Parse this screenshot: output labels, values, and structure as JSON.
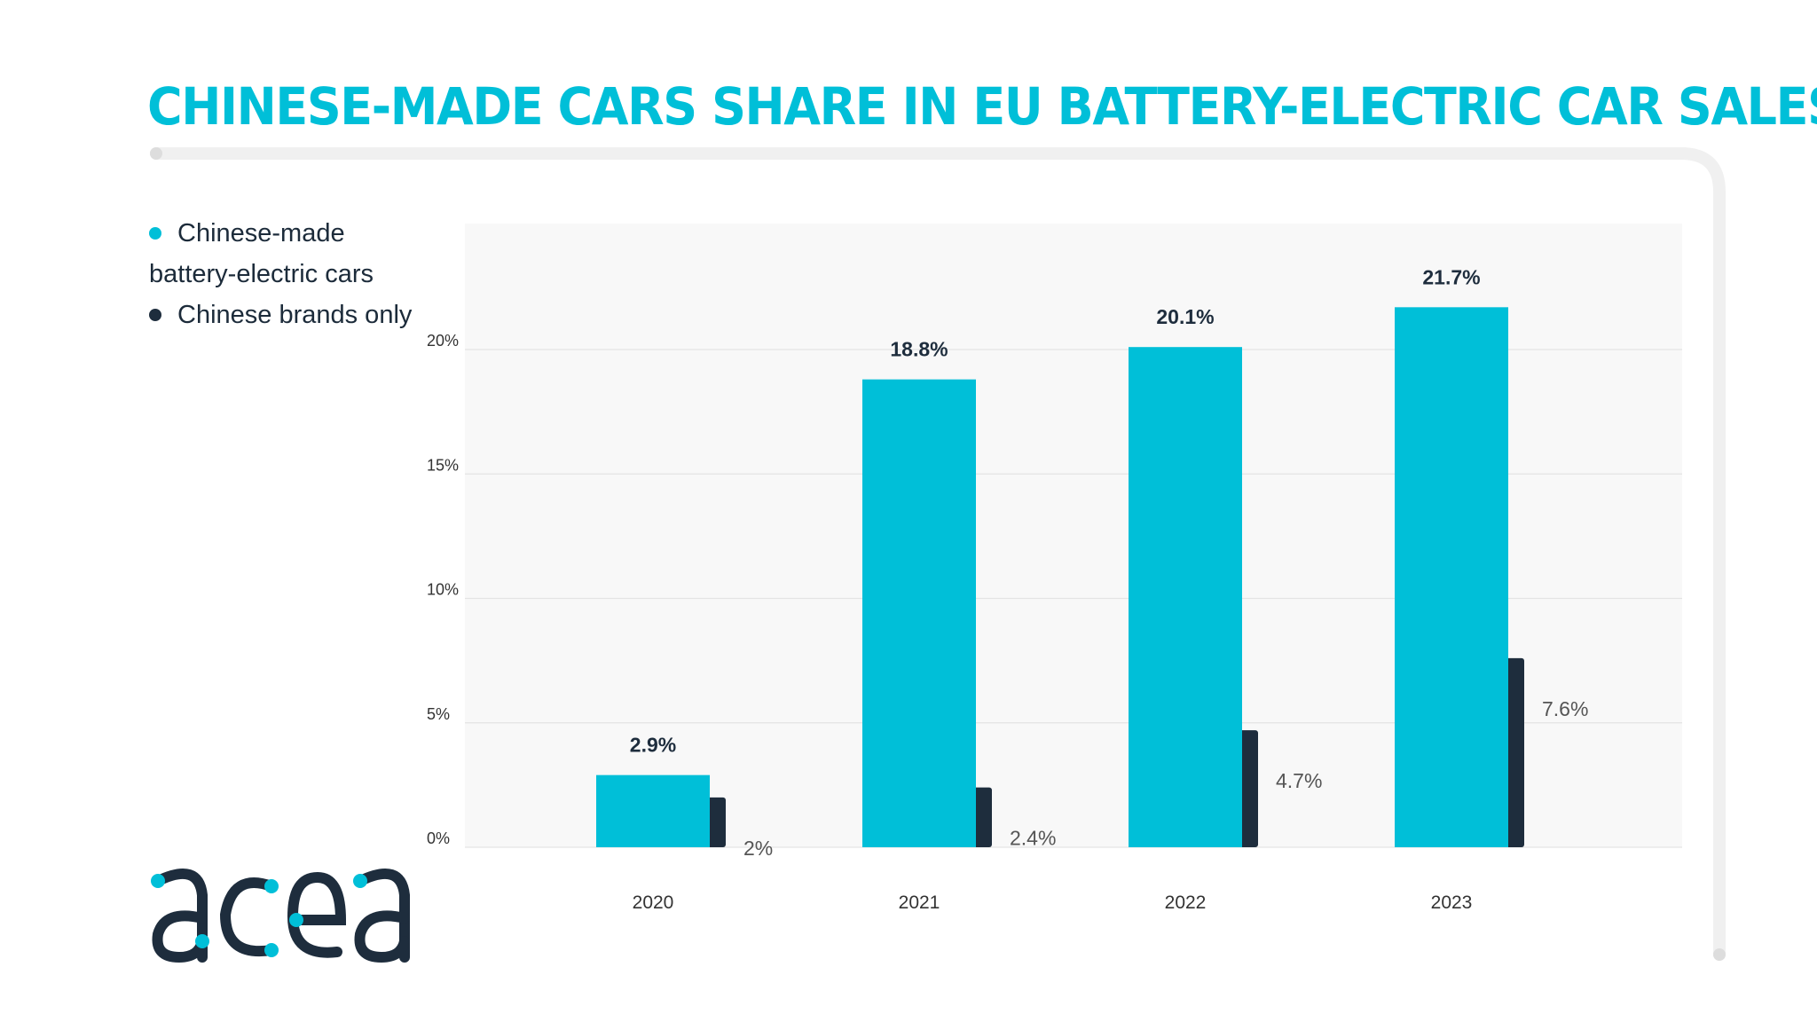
{
  "title": "CHINESE-MADE CARS SHARE IN EU BATTERY-ELECTRIC CAR SALES",
  "colors": {
    "accent": "#00BFD8",
    "dark": "#1E2D3D",
    "frame": "#F0F0F0",
    "plot_bg": "#F8F8F8"
  },
  "legend": [
    {
      "label_line1": "Chinese-made",
      "label_line2": "battery-electric cars",
      "color": "#00BFD8"
    },
    {
      "label_line1": "Chinese brands only",
      "color": "#1E2D3D"
    }
  ],
  "logo": {
    "text": "acea"
  },
  "chart_data": {
    "type": "bar",
    "title": "CHINESE-MADE CARS SHARE IN EU BATTERY-ELECTRIC CAR SALES",
    "categories": [
      "2020",
      "2021",
      "2022",
      "2023"
    ],
    "series": [
      {
        "name": "Chinese-made battery-electric cars",
        "values": [
          2.9,
          18.8,
          20.1,
          21.7
        ],
        "labels": [
          "2.9%",
          "18.8%",
          "20.1%",
          "21.7%"
        ],
        "color": "#00BFD8"
      },
      {
        "name": "Chinese brands only",
        "values": [
          2,
          2.4,
          4.7,
          7.6
        ],
        "labels": [
          "2%",
          "2.4%",
          "4.7%",
          "7.6%"
        ],
        "color": "#1E2D3D"
      }
    ],
    "yticks": [
      0,
      5,
      10,
      15,
      20
    ],
    "ytick_labels": [
      "0%",
      "5%",
      "10%",
      "15%",
      "20%"
    ],
    "ylim": [
      0,
      25
    ],
    "grid": true,
    "legend_position": "top-left"
  }
}
